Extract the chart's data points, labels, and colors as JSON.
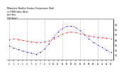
{
  "title": "Milwaukee Weather Outdoor Temperature (Red)\nvs THSW Index (Blue)\nper Hour\n(24 Hours)",
  "hours": [
    0,
    1,
    2,
    3,
    4,
    5,
    6,
    7,
    8,
    9,
    10,
    11,
    12,
    13,
    14,
    15,
    16,
    17,
    18,
    19,
    20,
    21,
    22,
    23
  ],
  "temp_red": [
    60,
    62,
    61,
    59,
    57,
    56,
    55,
    55,
    56,
    58,
    62,
    67,
    71,
    74,
    75,
    74,
    72,
    70,
    68,
    66,
    65,
    64,
    63,
    62
  ],
  "thsw_blue": [
    48,
    44,
    41,
    38,
    36,
    34,
    32,
    35,
    42,
    52,
    65,
    75,
    82,
    86,
    87,
    84,
    78,
    70,
    62,
    55,
    50,
    45,
    40,
    35
  ],
  "ylim_min": 20,
  "ylim_max": 100,
  "ytick_values": [
    30,
    40,
    50,
    60,
    70,
    80,
    90
  ],
  "ytick_labels": [
    "30",
    "40",
    "50",
    "60",
    "70",
    "80",
    "90"
  ],
  "xtick_step": 1,
  "red_color": "#ff0000",
  "blue_color": "#0000cc",
  "bg_color": "#ffffff",
  "grid_color": "#888888",
  "grid_x_positions": [
    0,
    4,
    8,
    12,
    16,
    20
  ]
}
